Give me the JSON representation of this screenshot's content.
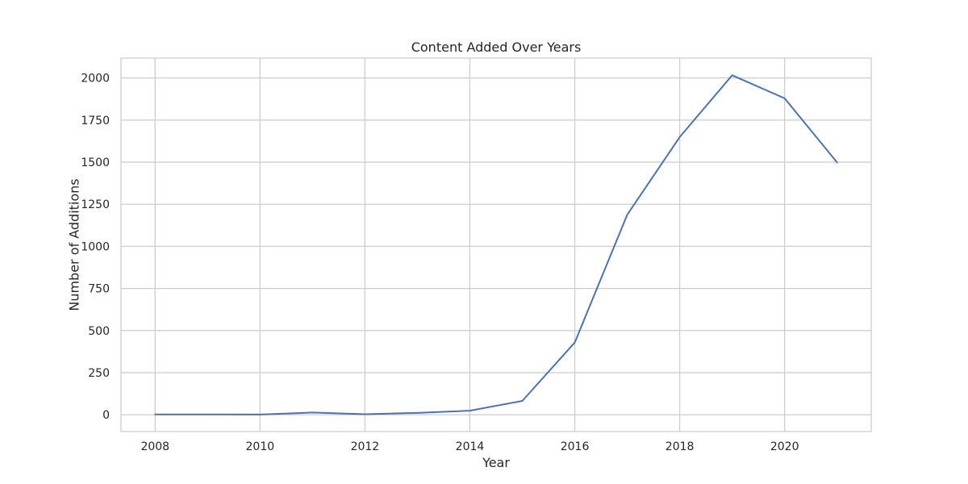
{
  "chart_data": {
    "type": "line",
    "title": "Content Added Over Years",
    "xlabel": "Year",
    "ylabel": "Number of Additions",
    "xlim": [
      2007.35,
      2021.65
    ],
    "ylim": [
      -100,
      2118
    ],
    "xticks": [
      2008,
      2010,
      2012,
      2014,
      2016,
      2018,
      2020
    ],
    "yticks": [
      0,
      250,
      500,
      750,
      1000,
      1250,
      1500,
      1750,
      2000
    ],
    "grid": true,
    "series": [
      {
        "x": [
          2008,
          2009,
          2010,
          2011,
          2012,
          2013,
          2014,
          2015,
          2016,
          2017,
          2018,
          2019,
          2020,
          2021
        ],
        "y": [
          2,
          2,
          1,
          13,
          3,
          11,
          24,
          82,
          429,
          1188,
          1649,
          2016,
          1879,
          1498
        ],
        "color": "#4C72B0"
      }
    ],
    "colors": {
      "line": "#4C72B0",
      "grid": "#cccccc",
      "spine": "#cccccc",
      "text": "#262626"
    }
  }
}
